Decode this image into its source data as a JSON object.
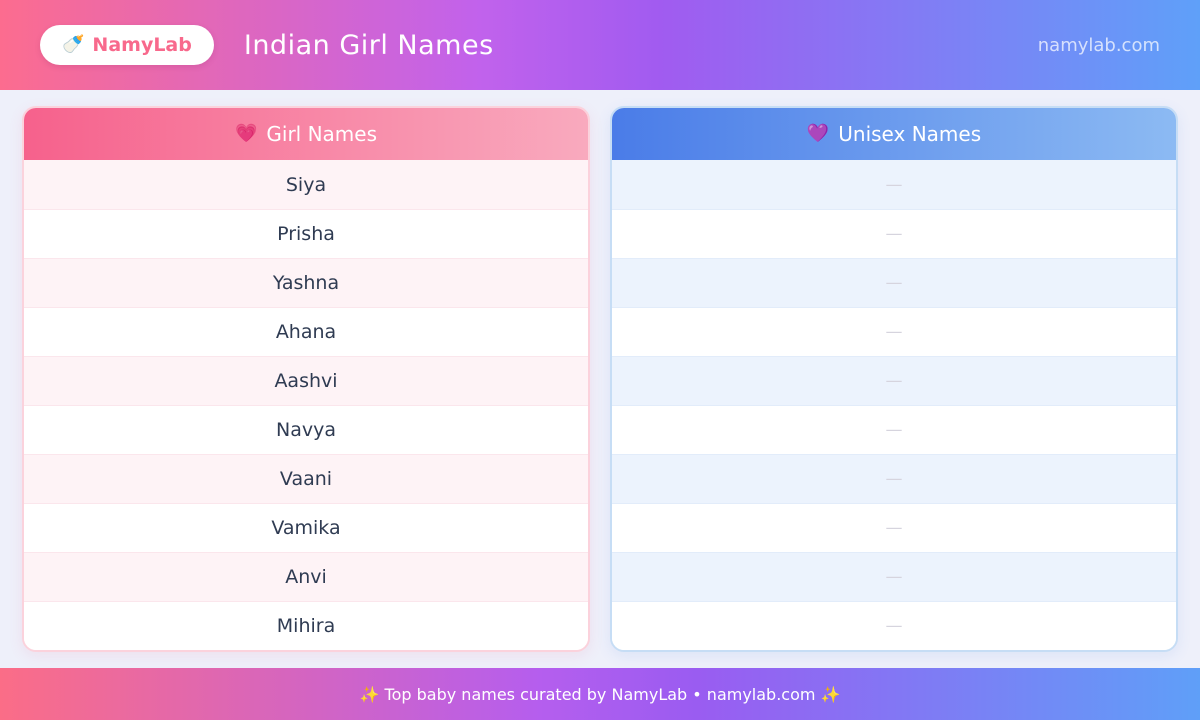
{
  "header": {
    "logo": {
      "icon": "🍼",
      "label": "NamyLab"
    },
    "title": "Indian Girl Names",
    "site": "namylab.com"
  },
  "girl_card": {
    "icon": "💗",
    "title": "Girl Names",
    "names": [
      "Siya",
      "Prisha",
      "Yashna",
      "Ahana",
      "Aashvi",
      "Navya",
      "Vaani",
      "Vamika",
      "Anvi",
      "Mihira"
    ]
  },
  "unisex_card": {
    "icon": "💜",
    "title": "Unisex Names",
    "placeholder": "—",
    "row_count": 10
  },
  "footer": {
    "text": "✨ Top baby names curated by NamyLab • namylab.com ✨"
  },
  "colors": {
    "header_gradient_start": "#fc6c8f",
    "header_gradient_mid": "#a15bf0",
    "header_gradient_end": "#5fa0f9",
    "girl_header_start": "#f6618c",
    "girl_header_end": "#f9aabe",
    "unisex_header_start": "#4a7ce8",
    "unisex_header_end": "#8cbaf3",
    "girl_row_alt": "#fef3f6",
    "unisex_row_alt": "#ecf3fd",
    "page_background": "#eef0fa",
    "name_text": "#2f3b52",
    "logo_text": "#f8698c"
  }
}
